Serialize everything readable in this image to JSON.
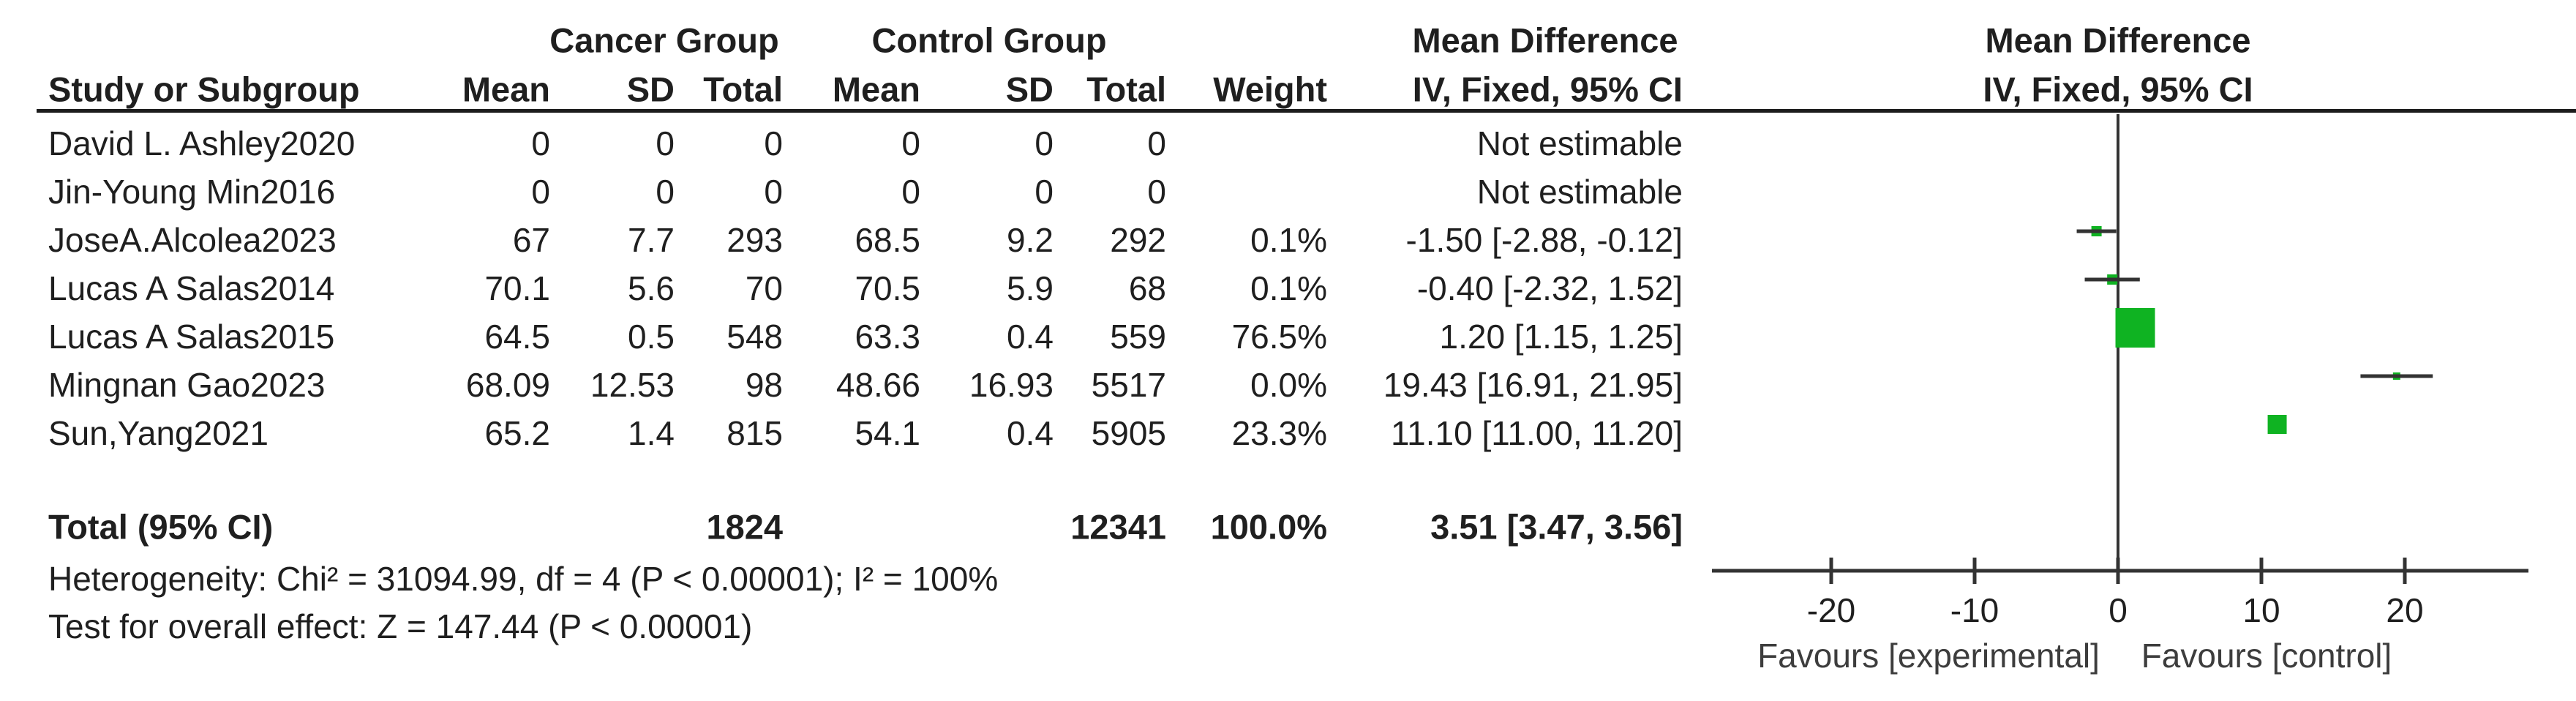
{
  "chart_data": {
    "type": "forest",
    "effect_label": "Mean Difference",
    "method_label": "IV, Fixed, 95% CI",
    "study_column_header": "Study or Subgroup",
    "weight_header": "Weight",
    "group1": {
      "name": "Cancer Group",
      "columns": [
        "Mean",
        "SD",
        "Total"
      ]
    },
    "group2": {
      "name": "Control Group",
      "columns": [
        "Mean",
        "SD",
        "Total"
      ]
    },
    "studies": [
      {
        "name": "David L. Ashley2020",
        "mean1": "0",
        "sd1": "0",
        "total1": "0",
        "mean2": "0",
        "sd2": "0",
        "total2": "0",
        "weight": "",
        "ci_text": "Not estimable",
        "estimable": false
      },
      {
        "name": "Jin-Young Min2016",
        "mean1": "0",
        "sd1": "0",
        "total1": "0",
        "mean2": "0",
        "sd2": "0",
        "total2": "0",
        "weight": "",
        "ci_text": "Not estimable",
        "estimable": false
      },
      {
        "name": "JoseA.Alcolea2023",
        "mean1": "67",
        "sd1": "7.7",
        "total1": "293",
        "mean2": "68.5",
        "sd2": "9.2",
        "total2": "292",
        "weight": "0.1%",
        "ci_text": "-1.50 [-2.88, -0.12]",
        "estimable": true,
        "md": -1.5,
        "ci_low": -2.88,
        "ci_high": -0.12,
        "marker_px": 14
      },
      {
        "name": "Lucas A Salas2014",
        "mean1": "70.1",
        "sd1": "5.6",
        "total1": "70",
        "mean2": "70.5",
        "sd2": "5.9",
        "total2": "68",
        "weight": "0.1%",
        "ci_text": "-0.40 [-2.32, 1.52]",
        "estimable": true,
        "md": -0.4,
        "ci_low": -2.32,
        "ci_high": 1.52,
        "marker_px": 14
      },
      {
        "name": "Lucas A Salas2015",
        "mean1": "64.5",
        "sd1": "0.5",
        "total1": "548",
        "mean2": "63.3",
        "sd2": "0.4",
        "total2": "559",
        "weight": "76.5%",
        "ci_text": "1.20 [1.15, 1.25]",
        "estimable": true,
        "md": 1.2,
        "ci_low": 1.15,
        "ci_high": 1.25,
        "marker_px": 54
      },
      {
        "name": "Mingnan Gao2023",
        "mean1": "68.09",
        "sd1": "12.53",
        "total1": "98",
        "mean2": "48.66",
        "sd2": "16.93",
        "total2": "5517",
        "weight": "0.0%",
        "ci_text": "19.43 [16.91, 21.95]",
        "estimable": true,
        "md": 19.43,
        "ci_low": 16.91,
        "ci_high": 21.95,
        "marker_px": 10
      },
      {
        "name": "Sun,Yang2021",
        "mean1": "65.2",
        "sd1": "1.4",
        "total1": "815",
        "mean2": "54.1",
        "sd2": "0.4",
        "total2": "5905",
        "weight": "23.3%",
        "ci_text": "11.10 [11.00, 11.20]",
        "estimable": true,
        "md": 11.1,
        "ci_low": 11.0,
        "ci_high": 11.2,
        "marker_px": 26
      }
    ],
    "total": {
      "label": "Total (95% CI)",
      "total1": "1824",
      "total2": "12341",
      "weight": "100.0%",
      "ci_text": "3.51 [3.47, 3.56]",
      "md": 3.51,
      "ci_low": 3.47,
      "ci_high": 3.56
    },
    "heterogeneity_text": "Heterogeneity: Chi² = 31094.99, df = 4 (P < 0.00001); I² = 100%",
    "overall_effect_text": "Test for overall effect: Z = 147.44 (P < 0.00001)",
    "axis": {
      "ticks": [
        -20,
        -10,
        0,
        10,
        20
      ],
      "xmin": -28.3,
      "xmax": 28.6,
      "favours_left": "Favours [experimental]",
      "favours_right": "Favours [control]"
    },
    "colors": {
      "marker": "#0FB322",
      "line": "#333333",
      "text": "#1f1f1f",
      "favours_text": "#3d3d3d"
    }
  }
}
